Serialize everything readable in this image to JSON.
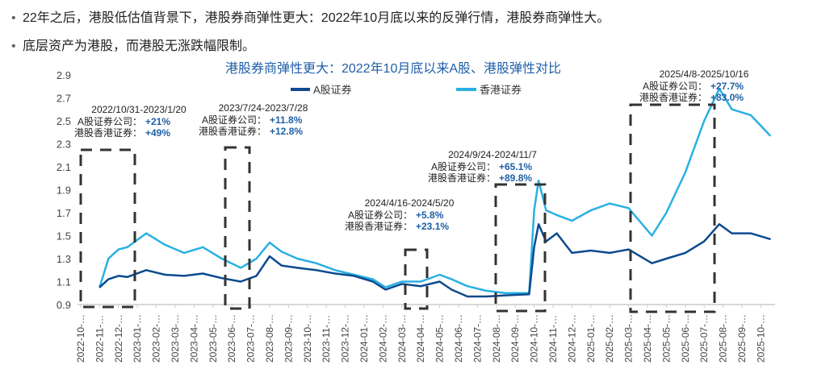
{
  "bullets": [
    "22年之后，港股低估值背景下，港股券商弹性更大：2022年10月底以来的反弹行情，港股券商弹性大。",
    "底层资产为港股，而港股无涨跌幅限制。"
  ],
  "chart_data": {
    "type": "line",
    "title": "港股券商弹性更大：2022年10月底以来A股、港股弹性对比",
    "ylim": [
      0.9,
      2.9
    ],
    "yticks": [
      "0.9",
      "1.1",
      "1.3",
      "1.5",
      "1.7",
      "1.9",
      "2.1",
      "2.3",
      "2.5",
      "2.7",
      "2.9"
    ],
    "xticks": [
      "2022-10-…",
      "2022-11-…",
      "2022-12-…",
      "2023-01-…",
      "2023-02-…",
      "2023-03-…",
      "2023-04-…",
      "2023-05-…",
      "2023-06-…",
      "2023-07-…",
      "2023-08-…",
      "2023-09-…",
      "2023-10-…",
      "2023-11-…",
      "2023-12-…",
      "2024-01-…",
      "2024-02-…",
      "2024-03-…",
      "2024-04-…",
      "2024-05-…",
      "2024-06-…",
      "2024-07-…",
      "2024-08-…",
      "2024-09-…",
      "2024-10-…",
      "2024-11-…",
      "2024-12-…",
      "2025-01-…",
      "2025-02-…",
      "2025-03-…",
      "2025-04-…",
      "2025-05-…",
      "2025-06-…",
      "2025-07-…",
      "2025-08-…",
      "2025-09-…",
      "2025-10-…"
    ],
    "legend_position": "top-center",
    "x": [
      "2022-10-31",
      "2022-11-15",
      "2022-12-01",
      "2022-12-15",
      "2023-01-15",
      "2023-02-15",
      "2023-03-15",
      "2023-04-15",
      "2023-05-15",
      "2023-06-15",
      "2023-07-10",
      "2023-07-31",
      "2023-08-20",
      "2023-09-15",
      "2023-10-15",
      "2023-11-15",
      "2023-12-15",
      "2024-01-15",
      "2024-02-05",
      "2024-03-01",
      "2024-04-01",
      "2024-05-01",
      "2024-05-20",
      "2024-06-15",
      "2024-07-15",
      "2024-08-15",
      "2024-09-23",
      "2024-10-01",
      "2024-10-08",
      "2024-10-20",
      "2024-11-07",
      "2024-12-01",
      "2025-01-01",
      "2025-02-01",
      "2025-03-01",
      "2025-04-08",
      "2025-05-01",
      "2025-06-01",
      "2025-07-01",
      "2025-07-25",
      "2025-08-15",
      "2025-09-15",
      "2025-10-16"
    ],
    "series": [
      {
        "name": "A股证券",
        "color": "#0b4a8f",
        "values": [
          1.05,
          1.12,
          1.15,
          1.14,
          1.2,
          1.16,
          1.15,
          1.17,
          1.13,
          1.1,
          1.15,
          1.32,
          1.24,
          1.22,
          1.2,
          1.17,
          1.15,
          1.1,
          1.03,
          1.08,
          1.06,
          1.1,
          1.03,
          0.97,
          0.97,
          0.98,
          0.99,
          1.4,
          1.6,
          1.45,
          1.52,
          1.35,
          1.37,
          1.35,
          1.38,
          1.26,
          1.3,
          1.35,
          1.45,
          1.6,
          1.52,
          1.52,
          1.47
        ]
      },
      {
        "name": "香港证券",
        "color": "#29b0e3",
        "values": [
          1.05,
          1.3,
          1.38,
          1.4,
          1.52,
          1.42,
          1.35,
          1.4,
          1.3,
          1.22,
          1.3,
          1.44,
          1.36,
          1.3,
          1.26,
          1.2,
          1.16,
          1.12,
          1.05,
          1.1,
          1.1,
          1.16,
          1.12,
          1.06,
          1.02,
          1.0,
          1.0,
          1.72,
          1.98,
          1.72,
          1.68,
          1.63,
          1.72,
          1.78,
          1.74,
          1.5,
          1.7,
          2.05,
          2.5,
          2.78,
          2.6,
          2.55,
          2.37
        ]
      }
    ],
    "annotations": [
      {
        "period": "2022/10/31-2023/1/20",
        "a_label": "A股证券公司：",
        "a_value": "+21%",
        "h_label": "港股香港证券：",
        "h_value": "+49%"
      },
      {
        "period": "2023/7/24-2023/7/28",
        "a_label": "A股证券公司：",
        "a_value": "+11.8%",
        "h_label": "港股香港证券：",
        "h_value": "+12.8%"
      },
      {
        "period": "2024/4/16-2024/5/20",
        "a_label": "A股证券公司：",
        "a_value": "+5.8%",
        "h_label": "港股香港证券：",
        "h_value": "+23.1%"
      },
      {
        "period": "2024/9/24-2024/11/7",
        "a_label": "A股证券公司：",
        "a_value": "+65.1%",
        "h_label": "港股香港证券：",
        "h_value": "+89.8%"
      },
      {
        "period": "2025/4/8-2025/10/16",
        "a_label": "A股证券公司：",
        "a_value": "+27.7%",
        "h_label": "港股香港证券：",
        "h_value": "+83.0%"
      }
    ]
  }
}
